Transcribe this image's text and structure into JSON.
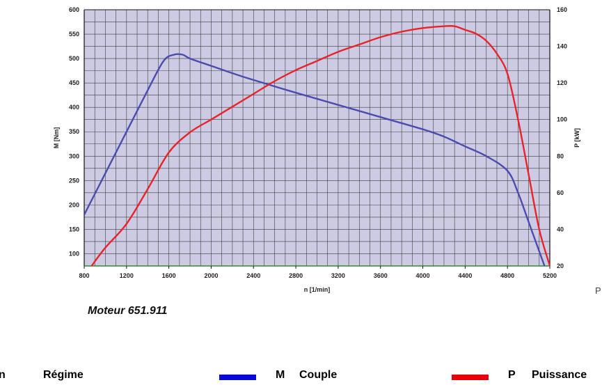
{
  "chart_data": {
    "type": "line",
    "xlabel": "n [1/min]",
    "ylabel": "M [Nm]",
    "y2label": "P [kW]",
    "xlim": [
      800,
      5200
    ],
    "ylim": [
      75,
      600
    ],
    "y2lim": [
      20,
      160
    ],
    "x_ticks": [
      800,
      1200,
      1600,
      2000,
      2400,
      2800,
      3200,
      3600,
      4000,
      4400,
      4800,
      5200
    ],
    "y_ticks": [
      100,
      150,
      200,
      250,
      300,
      350,
      400,
      450,
      500,
      550,
      600
    ],
    "y2_ticks": [
      20,
      40,
      60,
      80,
      100,
      120,
      140,
      160
    ],
    "grid": true,
    "colors": {
      "plot_bg": "#cdcbe3",
      "grid": "#3c3c3c",
      "xaxis": "#2f8a2f",
      "couple": "#4b4bb0",
      "puissance": "#e8242a"
    },
    "series": [
      {
        "name": "Couple",
        "axis": "left",
        "color": "#4b4bb0",
        "x": [
          800,
          1000,
          1200,
          1400,
          1550,
          1650,
          1730,
          1800,
          2000,
          2200,
          2400,
          2800,
          3200,
          3600,
          4000,
          4200,
          4400,
          4600,
          4800,
          4900,
          5000,
          5100,
          5150
        ],
        "y": [
          180,
          265,
          350,
          435,
          495,
          508,
          508,
          500,
          485,
          470,
          456,
          430,
          405,
          380,
          355,
          340,
          320,
          300,
          270,
          225,
          165,
          105,
          75
        ]
      },
      {
        "name": "Puissance",
        "axis": "right",
        "color": "#e8242a",
        "x": [
          870,
          1000,
          1200,
          1400,
          1600,
          1800,
          2000,
          2200,
          2400,
          2600,
          2800,
          3000,
          3200,
          3400,
          3600,
          3800,
          4000,
          4200,
          4300,
          4400,
          4500,
          4600,
          4700,
          4800,
          4900,
          5000,
          5100,
          5200
        ],
        "y": [
          20,
          30,
          43,
          62,
          82,
          93,
          100,
          107,
          114,
          121,
          127,
          132,
          137,
          141,
          145,
          148,
          150,
          151,
          151,
          149,
          147,
          143,
          136,
          125,
          100,
          70,
          40,
          20
        ]
      }
    ]
  },
  "caption": "Moteur 651.911",
  "legend": {
    "n": {
      "letter": "n",
      "label": "Régime"
    },
    "m": {
      "letter": "M",
      "label": "Couple",
      "color": "#0a0ad8"
    },
    "p": {
      "letter": "P",
      "label": "Puissance",
      "color": "#e8000a"
    }
  },
  "edge_letter": "P"
}
